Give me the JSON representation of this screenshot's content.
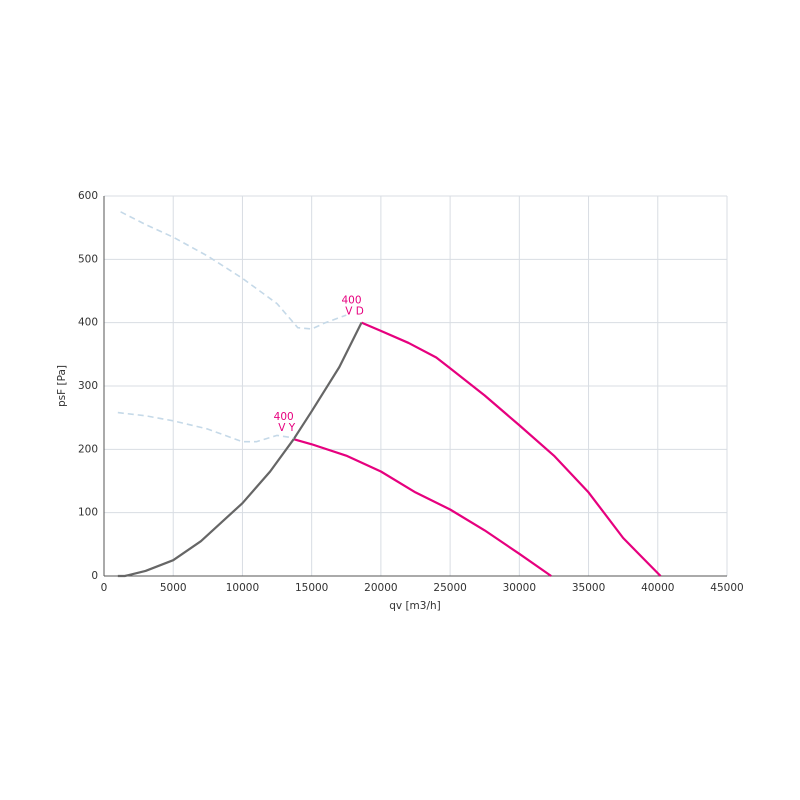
{
  "chart_data": {
    "type": "line",
    "xlabel": "qv [m3/h]",
    "ylabel": "psF [Pa]",
    "xlim": [
      0,
      45000
    ],
    "ylim": [
      0,
      600
    ],
    "xticks": [
      0,
      5000,
      10000,
      15000,
      20000,
      25000,
      30000,
      35000,
      40000,
      45000
    ],
    "yticks": [
      0,
      100,
      200,
      300,
      400,
      500,
      600
    ],
    "grid": true,
    "series": [
      {
        "color": "#e6007e",
        "dash": false,
        "x": [
          18600,
          20000,
          22000,
          24000,
          25000,
          27500,
          30000,
          32500,
          35000,
          37500,
          40200
        ],
        "values": [
          400,
          387,
          368,
          345,
          328,
          285,
          238,
          190,
          132,
          60,
          0
        ]
      },
      {
        "color": "#e6007e",
        "dash": false,
        "x": [
          13700,
          15000,
          17500,
          20000,
          22500,
          25000,
          27500,
          30000,
          32300
        ],
        "values": [
          216,
          208,
          190,
          165,
          132,
          105,
          72,
          35,
          0
        ]
      },
      {
        "color": "#666666",
        "dash": false,
        "x": [
          1000,
          1500,
          3000,
          5000,
          7000,
          10000,
          12000,
          13700,
          15000,
          17000,
          18600
        ],
        "values": [
          0,
          0,
          8,
          25,
          55,
          115,
          165,
          216,
          260,
          330,
          400
        ]
      },
      {
        "color": "#c5d9e8",
        "dash": true,
        "x": [
          1200,
          3000,
          5000,
          7500,
          10000,
          12500,
          14000,
          15000,
          16000,
          17500
        ],
        "values": [
          575,
          555,
          535,
          505,
          470,
          430,
          392,
          390,
          400,
          412
        ]
      },
      {
        "color": "#c5d9e8",
        "dash": true,
        "x": [
          1000,
          3000,
          5000,
          7500,
          10000,
          11000,
          12500,
          13700
        ],
        "values": [
          258,
          253,
          245,
          232,
          212,
          212,
          222,
          218
        ]
      }
    ],
    "annotations": [
      [
        "400",
        "V D"
      ],
      [
        "400",
        "V Y"
      ]
    ]
  }
}
